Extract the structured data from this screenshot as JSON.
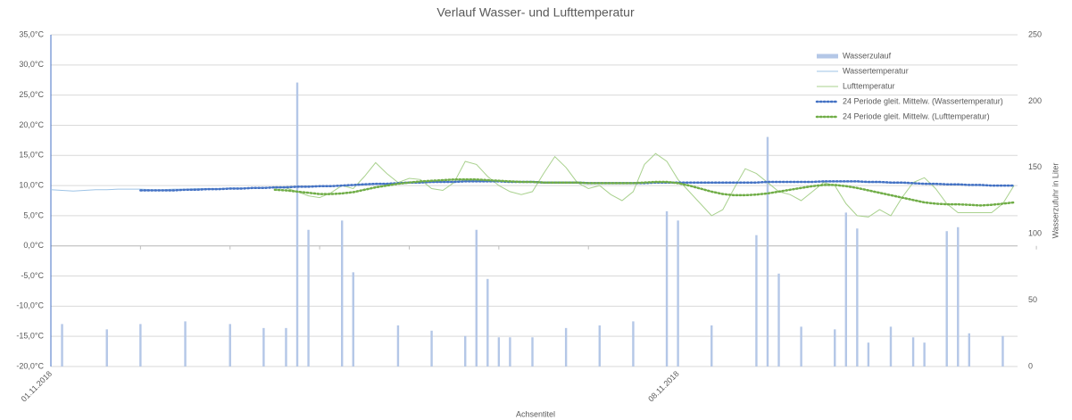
{
  "chart_data": {
    "type": "combo",
    "title": "Verlauf Wasser- und Lufttemperatur",
    "x_label": "Achsentitel",
    "y2_label": "Wasserzufuhr in Liter",
    "categories": [
      "01.11.2018",
      null,
      null,
      null,
      null,
      null,
      null,
      null,
      null,
      null,
      null,
      null,
      null,
      null,
      null,
      null,
      null,
      null,
      null,
      null,
      null,
      null,
      null,
      null,
      null,
      null,
      null,
      null,
      null,
      null,
      null,
      null,
      null,
      null,
      null,
      null,
      null,
      null,
      null,
      null,
      null,
      null,
      null,
      null,
      null,
      null,
      null,
      null,
      null,
      null,
      null,
      null,
      null,
      null,
      null,
      null,
      "08.11.2018",
      null,
      null,
      null,
      null,
      null,
      null,
      null,
      null,
      null,
      null,
      null,
      null,
      null,
      null,
      null,
      null,
      null,
      null,
      null,
      null,
      null,
      null,
      null,
      null,
      null,
      null,
      null,
      null,
      null,
      null
    ],
    "ylim": [
      -20,
      35
    ],
    "yticks": [
      {
        "value": -20,
        "label": "-20,0°C"
      },
      {
        "value": -15,
        "label": "-15,0°C"
      },
      {
        "value": -10,
        "label": "-10,0°C"
      },
      {
        "value": -5,
        "label": "-5,0°C"
      },
      {
        "value": 0,
        "label": "0,0°C"
      },
      {
        "value": 5,
        "label": "5,0°C"
      },
      {
        "value": 10,
        "label": "10,0°C"
      },
      {
        "value": 15,
        "label": "15,0°C"
      },
      {
        "value": 20,
        "label": "20,0°C"
      },
      {
        "value": 25,
        "label": "25,0°C"
      },
      {
        "value": 30,
        "label": "30,0°C"
      },
      {
        "value": 35,
        "label": "35,0°C"
      }
    ],
    "y2lim": [
      0,
      250
    ],
    "y2ticks": [
      0,
      50,
      100,
      150,
      200,
      250
    ],
    "grid": true,
    "legend": "top-right",
    "series": [
      {
        "name": "Wasserzulauf",
        "type": "bar",
        "axis": "y2",
        "color": "#b4c7e7",
        "values": [
          0,
          32,
          0,
          0,
          0,
          28,
          0,
          0,
          32,
          0,
          0,
          0,
          34,
          0,
          0,
          0,
          32,
          0,
          0,
          29,
          0,
          29,
          214,
          103,
          0,
          0,
          110,
          71,
          0,
          0,
          0,
          31,
          0,
          0,
          27,
          0,
          0,
          23,
          103,
          66,
          22,
          22,
          0,
          22,
          0,
          0,
          29,
          0,
          0,
          31,
          0,
          0,
          34,
          0,
          0,
          117,
          110,
          0,
          0,
          31,
          0,
          0,
          0,
          99,
          173,
          70,
          0,
          30,
          0,
          0,
          28,
          116,
          104,
          18,
          0,
          30,
          0,
          22,
          18,
          0,
          102,
          105,
          25,
          0,
          0,
          23,
          0
        ]
      },
      {
        "name": "Wassertemperatur",
        "type": "line",
        "color": "#9dc3e6",
        "dotted": false,
        "values": [
          9.3,
          9.2,
          9.1,
          9.2,
          9.3,
          9.3,
          9.4,
          9.4,
          9.4,
          9.3,
          9.3,
          9.4,
          9.4,
          9.5,
          9.5,
          9.5,
          9.6,
          9.6,
          9.6,
          9.7,
          9.7,
          9.8,
          9.8,
          9.9,
          9.9,
          9.9,
          10.0,
          10.0,
          10.1,
          10.2,
          10.3,
          10.3,
          10.4,
          10.5,
          10.5,
          10.6,
          10.6,
          10.7,
          10.7,
          10.7,
          10.7,
          10.6,
          10.6,
          10.6,
          10.5,
          10.5,
          10.5,
          10.5,
          10.4,
          10.4,
          10.4,
          10.4,
          10.4,
          10.5,
          10.5,
          10.5,
          10.5,
          10.5,
          10.4,
          10.4,
          10.4,
          10.4,
          10.5,
          10.5,
          10.5,
          10.6,
          10.6,
          10.6,
          10.6,
          10.6,
          10.6,
          10.6,
          10.6,
          10.5,
          10.5,
          10.4,
          10.4,
          10.3,
          10.3,
          10.2,
          10.2,
          10.1,
          10.1,
          10.0,
          10.0,
          10.0,
          9.9
        ]
      },
      {
        "name": "Lufttemperatur",
        "type": "line",
        "color": "#a9d18e",
        "dotted": false,
        "values": [
          null,
          null,
          null,
          null,
          null,
          null,
          null,
          null,
          null,
          null,
          null,
          null,
          null,
          null,
          null,
          null,
          null,
          null,
          null,
          null,
          9.8,
          9.6,
          9.0,
          8.3,
          8.0,
          8.8,
          10.0,
          9.5,
          11.5,
          13.8,
          12.0,
          10.5,
          11.2,
          11.0,
          9.5,
          9.2,
          10.5,
          14.0,
          13.5,
          11.5,
          10.0,
          9.0,
          8.5,
          9.0,
          12.0,
          14.8,
          13.0,
          10.5,
          9.5,
          10.0,
          8.5,
          7.5,
          9.0,
          13.5,
          15.3,
          14.0,
          11.0,
          9.0,
          7.0,
          5.0,
          6.0,
          9.5,
          12.8,
          12.0,
          10.5,
          9.0,
          8.5,
          7.5,
          9.0,
          10.5,
          10.0,
          7.0,
          5.0,
          4.8,
          6.0,
          5.0,
          8.0,
          10.5,
          11.3,
          9.5,
          7.0,
          5.5,
          5.5,
          5.5,
          5.5,
          7.0,
          10.0
        ]
      },
      {
        "name": "24 Periode gleit. Mittelw. (Wassertemperatur)",
        "type": "line",
        "color": "#4472c4",
        "dotted": true,
        "values": [
          null,
          null,
          null,
          null,
          null,
          null,
          null,
          null,
          9.2,
          9.2,
          9.2,
          9.2,
          9.3,
          9.3,
          9.4,
          9.4,
          9.5,
          9.5,
          9.6,
          9.6,
          9.7,
          9.7,
          9.8,
          9.8,
          9.9,
          9.9,
          10.0,
          10.1,
          10.2,
          10.3,
          10.3,
          10.4,
          10.5,
          10.5,
          10.6,
          10.6,
          10.6,
          10.7,
          10.7,
          10.7,
          10.7,
          10.6,
          10.6,
          10.6,
          10.5,
          10.5,
          10.5,
          10.5,
          10.4,
          10.4,
          10.4,
          10.4,
          10.4,
          10.4,
          10.5,
          10.5,
          10.5,
          10.5,
          10.5,
          10.5,
          10.5,
          10.5,
          10.5,
          10.5,
          10.6,
          10.6,
          10.6,
          10.6,
          10.6,
          10.7,
          10.7,
          10.7,
          10.7,
          10.6,
          10.6,
          10.5,
          10.5,
          10.4,
          10.3,
          10.3,
          10.2,
          10.2,
          10.1,
          10.1,
          10.0,
          10.0,
          10.0
        ]
      },
      {
        "name": "24 Periode gleit. Mittelw. (Lufttemperatur)",
        "type": "line",
        "color": "#70ad47",
        "dotted": true,
        "values": [
          null,
          null,
          null,
          null,
          null,
          null,
          null,
          null,
          null,
          null,
          null,
          null,
          null,
          null,
          null,
          null,
          null,
          null,
          null,
          null,
          9.3,
          9.2,
          9.0,
          8.8,
          8.6,
          8.6,
          8.7,
          8.9,
          9.3,
          9.7,
          10.0,
          10.3,
          10.5,
          10.7,
          10.8,
          10.9,
          11.0,
          11.0,
          11.0,
          10.9,
          10.8,
          10.7,
          10.6,
          10.6,
          10.5,
          10.5,
          10.5,
          10.5,
          10.4,
          10.4,
          10.4,
          10.4,
          10.4,
          10.5,
          10.6,
          10.6,
          10.4,
          10.0,
          9.5,
          9.0,
          8.6,
          8.4,
          8.4,
          8.5,
          8.7,
          9.0,
          9.3,
          9.6,
          9.9,
          10.1,
          10.1,
          9.9,
          9.6,
          9.2,
          8.8,
          8.4,
          8.0,
          7.6,
          7.2,
          7.0,
          6.9,
          6.9,
          6.8,
          6.7,
          6.8,
          7.0,
          7.2
        ]
      }
    ]
  }
}
